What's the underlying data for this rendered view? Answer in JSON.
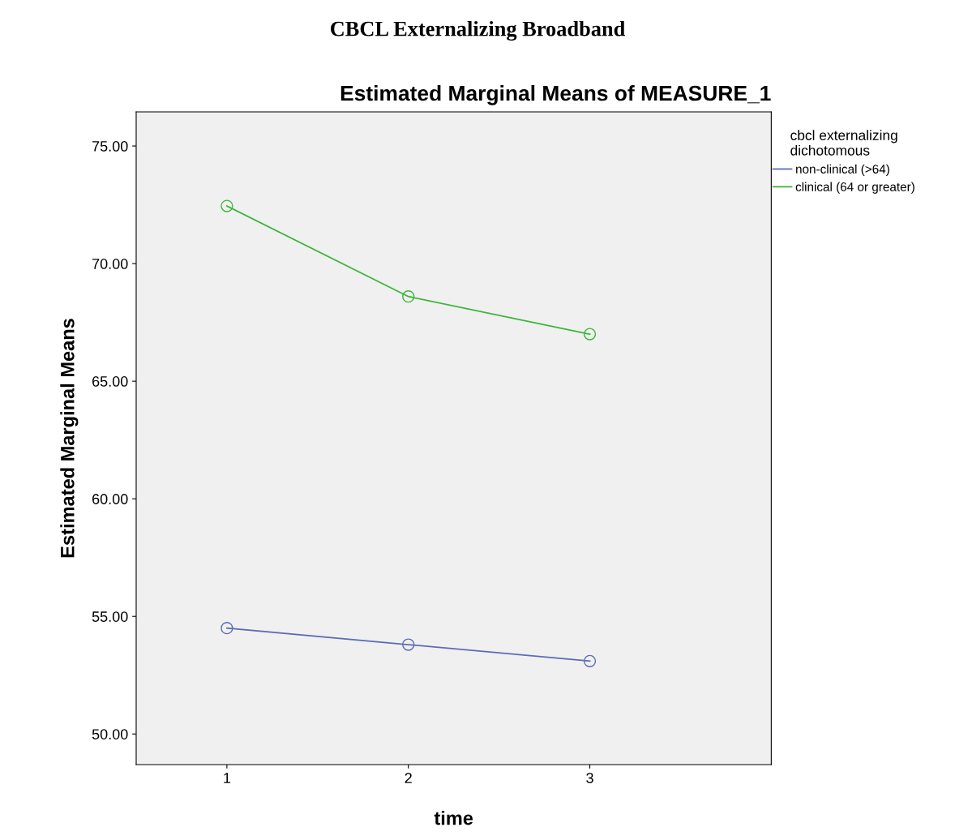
{
  "chart_data": {
    "type": "line",
    "title": "CBCL Externalizing Broadband",
    "subtitle": "Estimated Marginal Means of MEASURE_1",
    "xlabel": "time",
    "ylabel": "Estimated Marginal Means",
    "legend_title": "cbcl externalizing\ndichotomous",
    "x": [
      1,
      2,
      3
    ],
    "series": [
      {
        "name": "non-clinical (>64)",
        "color": "#5c6bb8",
        "values": [
          54.5,
          53.8,
          53.1
        ]
      },
      {
        "name": "clinical (64 or greater)",
        "color": "#3cb53c",
        "values": [
          72.45,
          68.6,
          67.0
        ]
      }
    ],
    "xlim": [
      0.5,
      4.0
    ],
    "xticks": [
      1,
      2,
      3
    ],
    "ylim": [
      48.7,
      76.45
    ],
    "yticks": [
      {
        "value": 50,
        "label": "50.00"
      },
      {
        "value": 55,
        "label": "55.00"
      },
      {
        "value": 60,
        "label": "60.00"
      },
      {
        "value": 65,
        "label": "65.00"
      },
      {
        "value": 70,
        "label": "70.00"
      },
      {
        "value": 75,
        "label": "75.00"
      }
    ],
    "grid": false,
    "legend": "top right",
    "marker": "circle",
    "line_style": "solid"
  }
}
